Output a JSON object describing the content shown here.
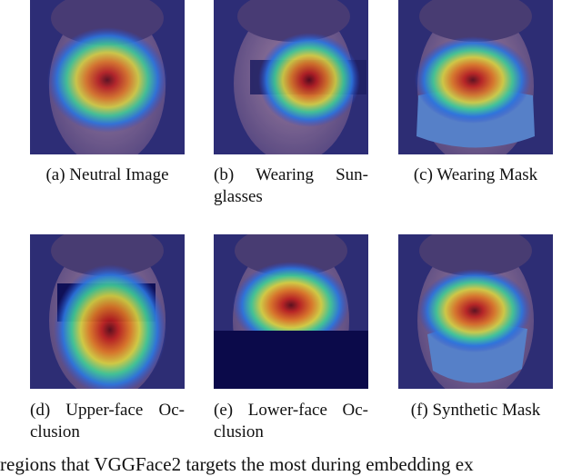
{
  "panels": [
    {
      "id": "a",
      "caption": "(a) Neutral Image"
    },
    {
      "id": "b",
      "caption_line1_words": [
        "(b)",
        "Wearing",
        "Sun-"
      ],
      "caption_line2": "glasses"
    },
    {
      "id": "c",
      "caption": "(c) Wearing Mask"
    },
    {
      "id": "d",
      "caption_line1_words": [
        "(d)",
        "Upper-face",
        "Oc-"
      ],
      "caption_line2": "clusion"
    },
    {
      "id": "e",
      "caption_line1_words": [
        "(e)",
        "Lower-face",
        "Oc-"
      ],
      "caption_line2": "clusion"
    },
    {
      "id": "f",
      "caption": "(f) Synthetic Mask"
    }
  ],
  "bottom_text": "regions that VGGFace2 targets the most during embedding ex",
  "colors": {
    "background": "#2c2a6a",
    "face": "#8c6f8f",
    "occluder": "#0b0a4a",
    "mask": "#5a86c8"
  }
}
